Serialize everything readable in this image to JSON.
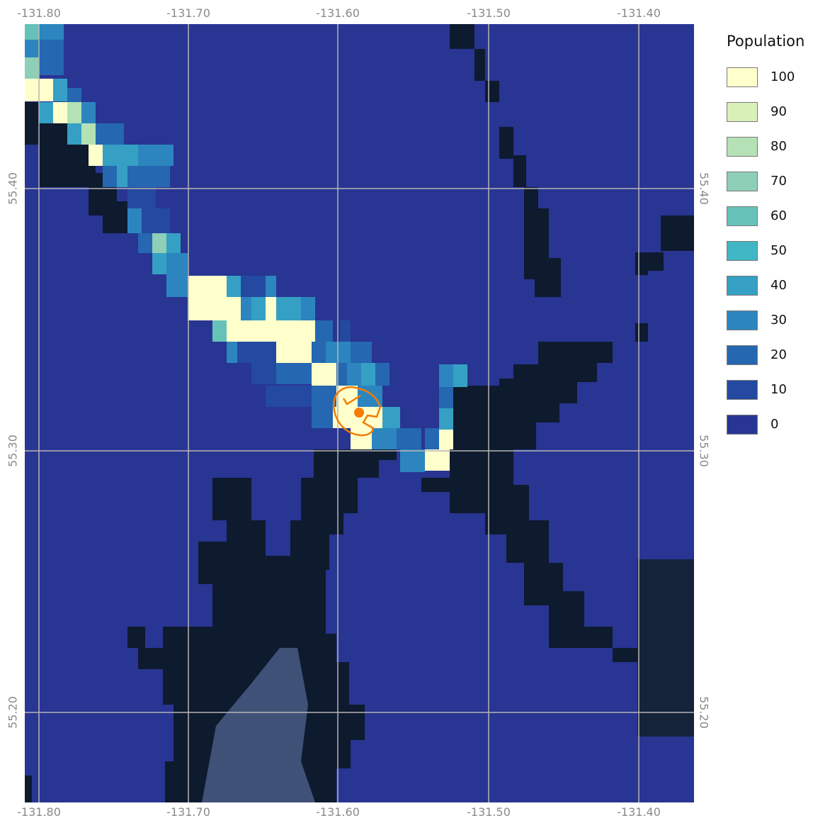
{
  "map": {
    "x_ticks": [
      "-131.80",
      "-131.70",
      "-131.60",
      "-131.50",
      "-131.40"
    ],
    "y_ticks": [
      "55.40",
      "55.30",
      "55.20"
    ],
    "x_range": [
      -131.81,
      -131.365
    ],
    "y_range": [
      55.17,
      55.4665
    ],
    "grid": true,
    "colors": {
      "zero": "#283593",
      "land": "#0e1a2e",
      "grid": "#b5b5b5",
      "marker": "#f57c00"
    },
    "marker": {
      "lon": -131.586,
      "lat": 55.314
    }
  },
  "legend": {
    "title": "Population",
    "items": [
      {
        "label": "100",
        "color": "#ffffcc"
      },
      {
        "label": "90",
        "color": "#d9f0b8"
      },
      {
        "label": "80",
        "color": "#b4e1b5"
      },
      {
        "label": "70",
        "color": "#8ecfb7"
      },
      {
        "label": "60",
        "color": "#66c2b8"
      },
      {
        "label": "50",
        "color": "#41b6c4"
      },
      {
        "label": "40",
        "color": "#35a0c4"
      },
      {
        "label": "30",
        "color": "#2c85be"
      },
      {
        "label": "20",
        "color": "#2567b0"
      },
      {
        "label": "10",
        "color": "#2449a0"
      },
      {
        "label": "0",
        "color": "#283593"
      }
    ]
  }
}
